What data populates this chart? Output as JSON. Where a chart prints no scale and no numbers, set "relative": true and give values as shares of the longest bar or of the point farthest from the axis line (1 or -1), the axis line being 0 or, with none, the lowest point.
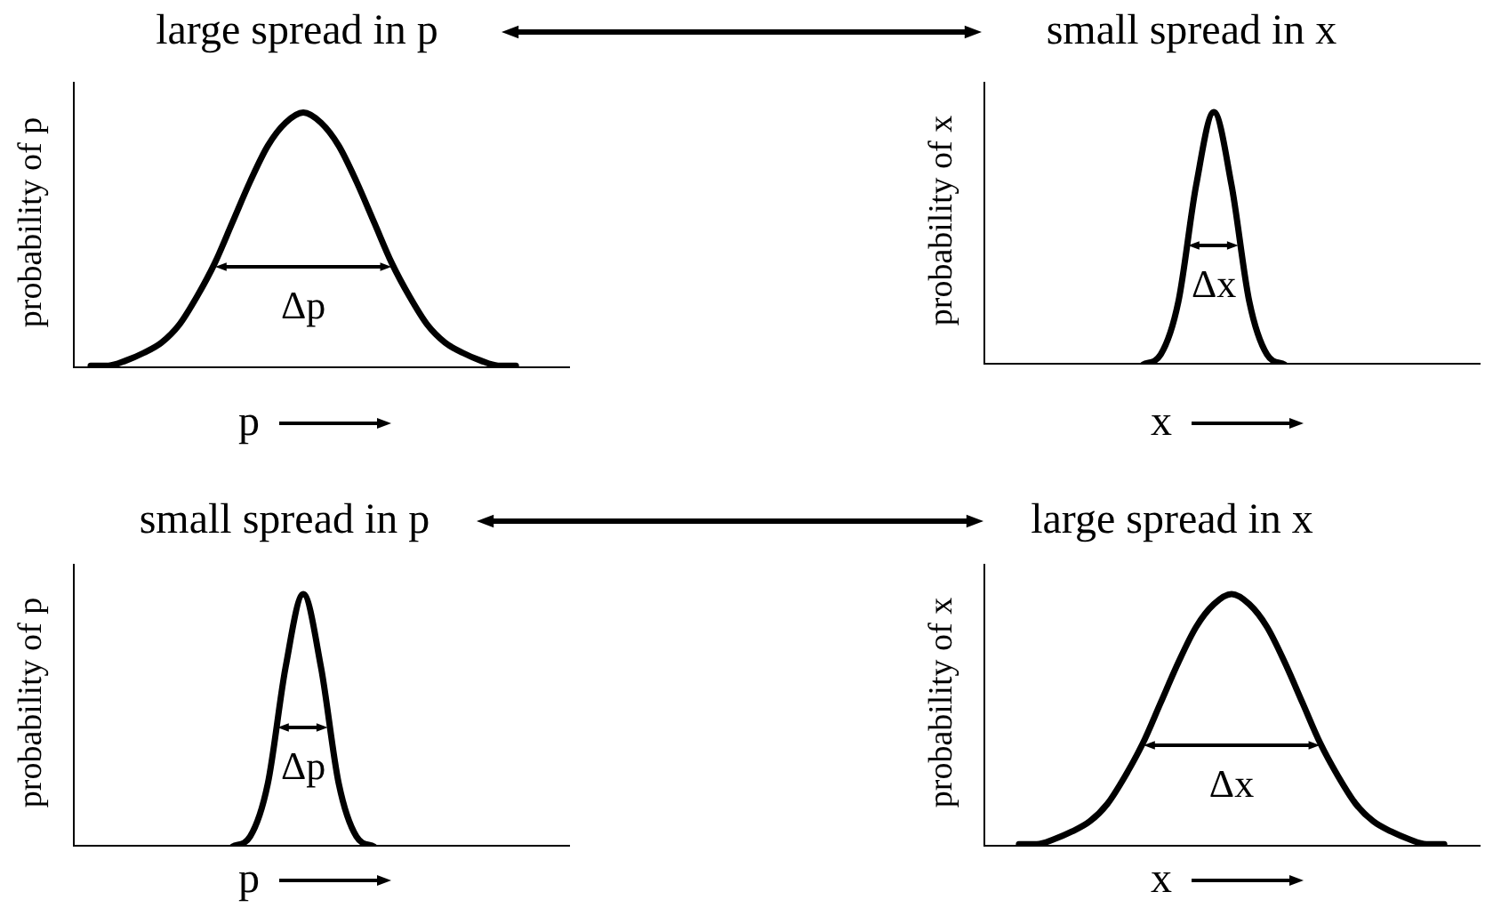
{
  "chart_data": [
    {
      "type": "line",
      "title": "large spread in p",
      "xlabel": "p",
      "ylabel": "probability of p",
      "relative": true,
      "marker": "none",
      "categories": [
        null,
        null,
        null,
        null,
        null,
        null,
        null,
        null,
        null,
        null,
        null,
        null,
        null,
        null,
        null,
        null,
        null,
        null,
        null,
        null,
        null,
        null,
        null,
        null,
        null,
        null,
        null,
        null,
        null
      ],
      "series": [
        {
          "color": "#000000",
          "values": [
            null,
            0.01,
            0.01,
            0.03,
            0.06,
            0.1,
            0.17,
            0.28,
            0.41,
            0.57,
            0.73,
            0.87,
            0.96,
            1,
            0.96,
            0.87,
            0.73,
            0.57,
            0.41,
            0.28,
            0.17,
            0.1,
            0.06,
            0.03,
            0.01,
            0.01,
            null,
            null,
            null
          ]
        }
      ],
      "annotations": [
        "Δp"
      ]
    },
    {
      "type": "line",
      "title": "small spread in x",
      "xlabel": "x",
      "ylabel": "probability of x",
      "relative": true,
      "marker": "none",
      "categories": [
        null,
        null,
        null,
        null,
        null,
        null,
        null,
        null,
        null,
        null,
        null,
        null,
        null,
        null,
        null,
        null,
        null,
        null,
        null,
        null,
        null,
        null,
        null,
        null,
        null,
        null,
        null,
        null,
        null
      ],
      "series": [
        {
          "color": "#000000",
          "values": [
            null,
            null,
            null,
            null,
            null,
            null,
            null,
            null,
            null,
            0,
            0.04,
            0.25,
            0.71,
            1,
            0.71,
            0.25,
            0.04,
            0,
            null,
            null,
            null,
            null,
            null,
            null,
            null,
            null,
            null,
            null,
            null
          ]
        }
      ],
      "annotations": [
        "Δx"
      ]
    },
    {
      "type": "line",
      "title": "small spread in p",
      "xlabel": "p",
      "ylabel": "probability of p",
      "relative": true,
      "marker": "none",
      "categories": [
        null,
        null,
        null,
        null,
        null,
        null,
        null,
        null,
        null,
        null,
        null,
        null,
        null,
        null,
        null,
        null,
        null,
        null,
        null,
        null,
        null,
        null,
        null,
        null,
        null,
        null,
        null,
        null,
        null
      ],
      "series": [
        {
          "color": "#000000",
          "values": [
            null,
            null,
            null,
            null,
            null,
            null,
            null,
            null,
            null,
            0,
            0.04,
            0.25,
            0.71,
            1,
            0.71,
            0.25,
            0.04,
            0,
            null,
            null,
            null,
            null,
            null,
            null,
            null,
            null,
            null,
            null,
            null
          ]
        }
      ],
      "annotations": [
        "Δp"
      ]
    },
    {
      "type": "line",
      "title": "large spread in x",
      "xlabel": "x",
      "ylabel": "probability of x",
      "relative": true,
      "marker": "none",
      "categories": [
        null,
        null,
        null,
        null,
        null,
        null,
        null,
        null,
        null,
        null,
        null,
        null,
        null,
        null,
        null,
        null,
        null,
        null,
        null,
        null,
        null,
        null,
        null,
        null,
        null,
        null,
        null,
        null,
        null
      ],
      "series": [
        {
          "color": "#000000",
          "values": [
            null,
            null,
            0.01,
            0.01,
            0.03,
            0.06,
            0.1,
            0.17,
            0.28,
            0.41,
            0.57,
            0.73,
            0.87,
            0.96,
            1,
            0.96,
            0.87,
            0.73,
            0.57,
            0.41,
            0.28,
            0.17,
            0.1,
            0.06,
            0.03,
            0.01,
            0.01,
            null,
            null
          ]
        }
      ],
      "annotations": [
        "Δx"
      ]
    }
  ]
}
